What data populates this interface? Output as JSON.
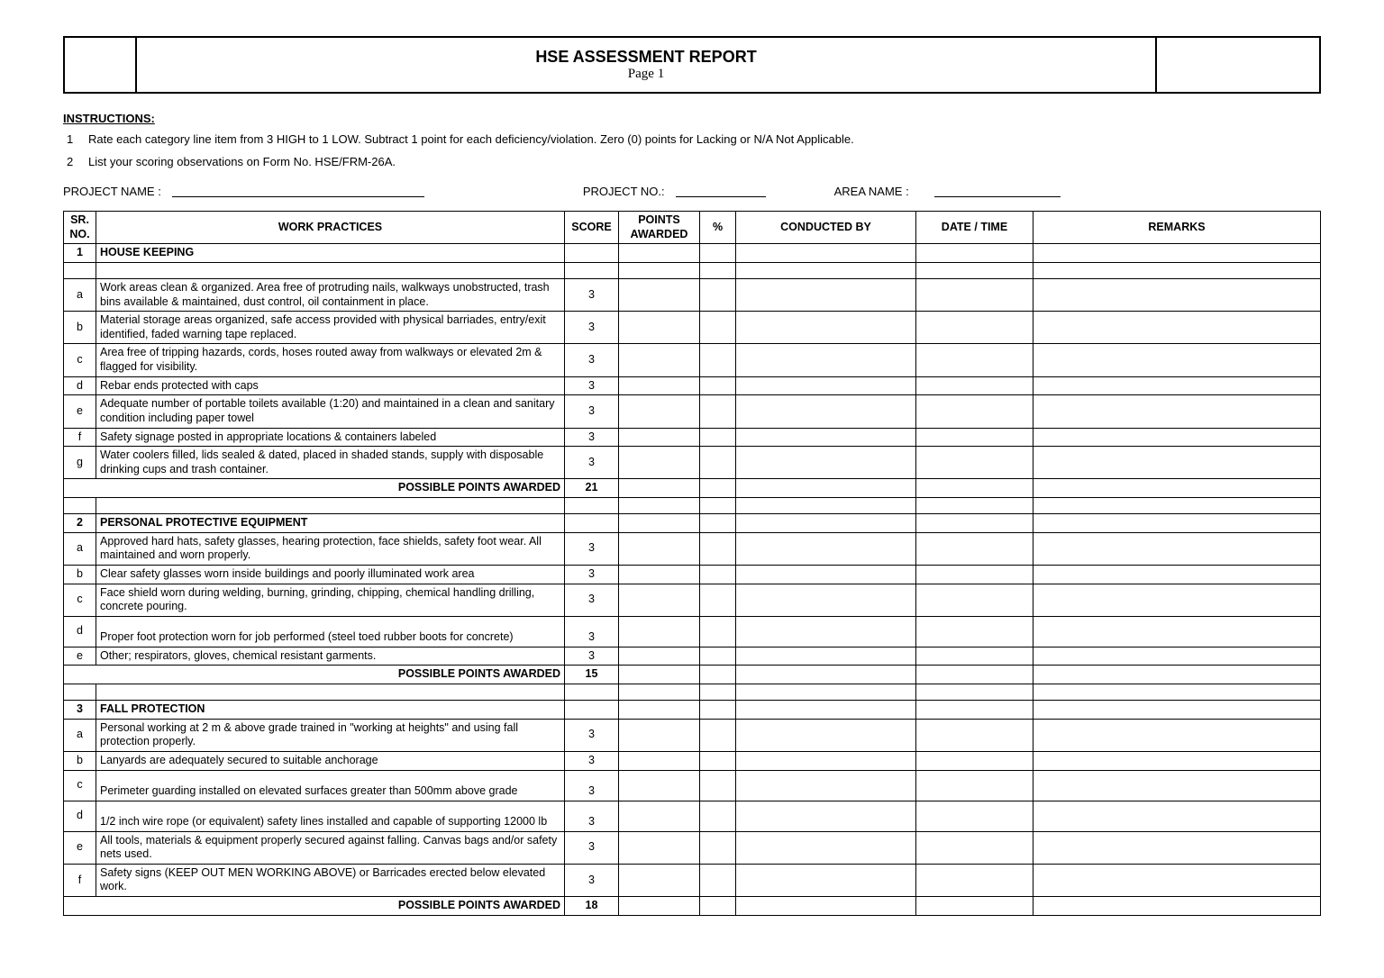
{
  "header": {
    "title": "HSE ASSESSMENT REPORT",
    "page_label": "Page 1"
  },
  "instructions": {
    "heading": "INSTRUCTIONS:",
    "items": [
      {
        "n": "1",
        "text": "Rate each category line item from 3 HIGH to 1 LOW. Subtract 1 point for each deficiency/violation. Zero (0) points for Lacking or N/A Not Applicable."
      },
      {
        "n": "2",
        "text": "List your scoring observations on Form No. HSE/FRM-26A."
      }
    ]
  },
  "project_row": {
    "project_name_label": "PROJECT NAME :",
    "project_no_label": "PROJECT NO.:",
    "area_name_label": "AREA NAME :"
  },
  "columns": {
    "sr": "SR. NO.",
    "work_practices": "WORK PRACTICES",
    "score": "SCORE",
    "points_awarded": "POINTS AWARDED",
    "percent": "%",
    "conducted_by": "CONDUCTED BY",
    "date_time": "DATE / TIME",
    "remarks": "REMARKS"
  },
  "subtotal_label": "POSSIBLE POINTS AWARDED",
  "sections": [
    {
      "num": "1",
      "title": "HOUSE KEEPING",
      "spacer_before_items": true,
      "items": [
        {
          "sr": "a",
          "desc": "Work areas clean & organized. Area free of protruding nails, walkways unobstructed, trash bins available & maintained, dust control, oil containment in place.",
          "score": "3"
        },
        {
          "sr": "b",
          "desc": "Material storage areas organized, safe access provided with physical barriades, entry/exit identified, faded warning tape replaced.",
          "score": "3"
        },
        {
          "sr": "c",
          "desc": "Area free of tripping hazards, cords, hoses routed away from walkways or elevated 2m & flagged for visibility.",
          "score": "3"
        },
        {
          "sr": "d",
          "desc": "Rebar ends protected with caps",
          "score": "3"
        },
        {
          "sr": "e",
          "desc": "Adequate number of portable toilets available (1:20) and maintained in a clean and sanitary condition including paper towel",
          "score": "3"
        },
        {
          "sr": "f",
          "desc": "Safety signage posted in appropriate locations & containers labeled",
          "score": "3"
        },
        {
          "sr": "g",
          "desc": "Water coolers filled, lids sealed & dated, placed in shaded stands, supply with disposable drinking cups and trash container.",
          "score": "3"
        }
      ],
      "subtotal": "21"
    },
    {
      "num": "2",
      "title": "PERSONAL PROTECTIVE EQUIPMENT",
      "spacer_before": true,
      "items": [
        {
          "sr": "a",
          "desc": "Approved hard hats, safety glasses, hearing protection, face shields, safety foot wear. All maintained and worn properly.",
          "score": "3"
        },
        {
          "sr": "b",
          "desc": "Clear safety glasses worn inside buildings and poorly illuminated work area",
          "score": "3"
        },
        {
          "sr": "c",
          "desc": "Face shield worn during welding, burning, grinding, chipping, chemical handling drilling, concrete pouring.",
          "score": "3"
        },
        {
          "sr": "d",
          "desc": "Proper foot protection worn for job performed (steel toed rubber boots for concrete)",
          "score": "3",
          "tall": true
        },
        {
          "sr": "e",
          "desc": "Other; respirators, gloves, chemical resistant garments.",
          "score": "3"
        }
      ],
      "subtotal": "15"
    },
    {
      "num": "3",
      "title": "FALL PROTECTION",
      "spacer_before": true,
      "items": [
        {
          "sr": "a",
          "desc": "Personal working at 2 m & above grade trained in \"working at heights\" and using fall protection properly.",
          "score": "3"
        },
        {
          "sr": "b",
          "desc": "Lanyards are adequately secured to suitable anchorage",
          "score": "3"
        },
        {
          "sr": "c",
          "desc": "Perimeter guarding installed on elevated surfaces greater than 500mm above grade",
          "score": "3",
          "tall": true
        },
        {
          "sr": "d",
          "desc": "1/2 inch wire rope (or equivalent) safety lines installed and capable of supporting 12000 lb",
          "score": "3",
          "tall": true
        },
        {
          "sr": "e",
          "desc": "All tools, materials & equipment properly secured against falling. Canvas bags and/or safety nets used.",
          "score": "3"
        },
        {
          "sr": "f",
          "desc": "Safety signs (KEEP OUT MEN WORKING ABOVE) or Barricades erected below elevated work.",
          "score": "3"
        }
      ],
      "subtotal": "18"
    }
  ]
}
